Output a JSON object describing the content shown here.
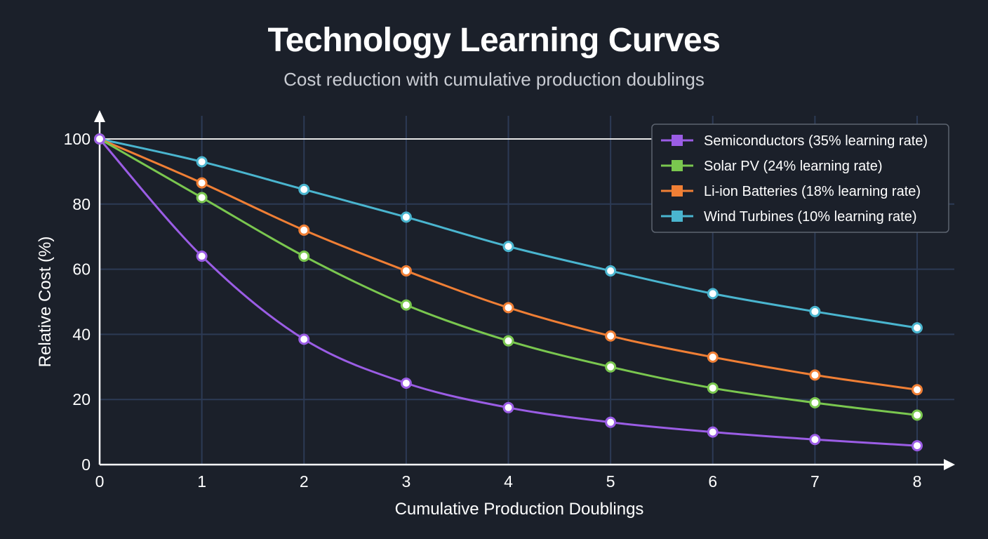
{
  "header": {
    "title": "Technology Learning Curves",
    "subtitle": "Cost reduction with cumulative production doublings"
  },
  "chart_data": {
    "type": "line",
    "title": "Technology Learning Curves",
    "subtitle": "Cost reduction with cumulative production doublings",
    "xlabel": "Cumulative Production Doublings",
    "ylabel": "Relative Cost (%)",
    "xlim": [
      0,
      8
    ],
    "ylim": [
      0,
      100
    ],
    "x_ticks": [
      0,
      1,
      2,
      3,
      4,
      5,
      6,
      7,
      8
    ],
    "y_ticks": [
      0,
      20,
      40,
      60,
      80,
      100
    ],
    "grid": true,
    "legend_position": "top-right",
    "x": [
      0,
      1,
      2,
      3,
      4,
      5,
      6,
      7,
      8
    ],
    "series": [
      {
        "name": "Semiconductors (35% learning rate)",
        "color": "#9b5de5",
        "values": [
          100,
          64,
          38.5,
          25,
          17.5,
          13,
          10,
          7.7,
          5.8
        ]
      },
      {
        "name": "Solar PV (24% learning rate)",
        "color": "#7ac74f",
        "values": [
          100,
          82,
          64,
          49,
          38,
          30,
          23.5,
          19,
          15.2
        ]
      },
      {
        "name": "Li-ion Batteries (18% learning rate)",
        "color": "#f07f35",
        "values": [
          100,
          86.5,
          72,
          59.5,
          48.2,
          39.5,
          33,
          27.5,
          23
        ]
      },
      {
        "name": "Wind Turbines (10% learning rate)",
        "color": "#4ab5cf",
        "values": [
          100,
          93,
          84.5,
          76,
          67,
          59.5,
          52.5,
          47,
          42
        ]
      }
    ]
  }
}
